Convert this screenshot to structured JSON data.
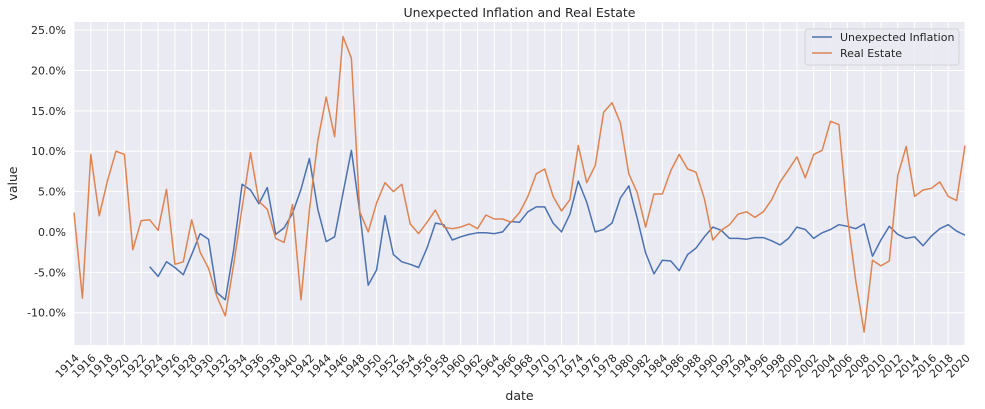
{
  "chart_data": {
    "type": "line",
    "title": "Unexpected Inflation and Real Estate",
    "xlabel": "date",
    "ylabel": "value",
    "xlim": [
      1914,
      2020
    ],
    "ylim": [
      -0.14,
      0.26
    ],
    "yticks": [
      -0.1,
      -0.05,
      0.0,
      0.05,
      0.1,
      0.15,
      0.2,
      0.25
    ],
    "ytick_labels": [
      "-10.0%",
      "-5.0%",
      "0.0%",
      "5.0%",
      "10.0%",
      "15.0%",
      "20.0%",
      "25.0%"
    ],
    "xticks": [
      1914,
      1916,
      1918,
      1920,
      1922,
      1924,
      1926,
      1928,
      1930,
      1932,
      1934,
      1936,
      1938,
      1940,
      1942,
      1944,
      1946,
      1948,
      1950,
      1952,
      1954,
      1956,
      1958,
      1960,
      1962,
      1964,
      1966,
      1968,
      1970,
      1972,
      1974,
      1976,
      1978,
      1980,
      1982,
      1984,
      1986,
      1988,
      1990,
      1992,
      1994,
      1996,
      1998,
      2000,
      2002,
      2004,
      2006,
      2008,
      2010,
      2012,
      2014,
      2016,
      2018,
      2020
    ],
    "xtick_labels": [
      "1914",
      "1916",
      "1918",
      "1920",
      "1922",
      "1924",
      "1926",
      "1928",
      "1930",
      "1932",
      "1934",
      "1936",
      "1938",
      "1940",
      "1942",
      "1944",
      "1946",
      "1948",
      "1950",
      "1952",
      "1954",
      "1956",
      "1958",
      "1960",
      "1962",
      "1964",
      "1966",
      "1968",
      "1970",
      "1972",
      "1974",
      "1976",
      "1978",
      "1980",
      "1982",
      "1984",
      "1986",
      "1988",
      "1990",
      "1992",
      "1994",
      "1996",
      "1998",
      "2000",
      "2002",
      "2004",
      "2006",
      "2008",
      "2010",
      "2012",
      "2014",
      "2016",
      "2018",
      "2020"
    ],
    "grid": true,
    "legend_position": "top-right",
    "series": [
      {
        "name": "Unexpected Inflation",
        "color": "#4c72b0",
        "x": [
          1923,
          1924,
          1925,
          1926,
          1927,
          1928,
          1929,
          1930,
          1931,
          1932,
          1933,
          1934,
          1935,
          1936,
          1937,
          1938,
          1939,
          1940,
          1941,
          1942,
          1943,
          1944,
          1945,
          1946,
          1947,
          1948,
          1949,
          1950,
          1951,
          1952,
          1953,
          1954,
          1955,
          1956,
          1957,
          1958,
          1959,
          1960,
          1961,
          1962,
          1963,
          1964,
          1965,
          1966,
          1967,
          1968,
          1969,
          1970,
          1971,
          1972,
          1973,
          1974,
          1975,
          1976,
          1977,
          1978,
          1979,
          1980,
          1981,
          1982,
          1983,
          1984,
          1985,
          1986,
          1987,
          1988,
          1989,
          1990,
          1991,
          1992,
          1993,
          1994,
          1995,
          1996,
          1997,
          1998,
          1999,
          2000,
          2001,
          2002,
          2003,
          2004,
          2005,
          2006,
          2007,
          2008,
          2009,
          2010,
          2011,
          2012,
          2013,
          2014,
          2015,
          2016,
          2017,
          2018,
          2019,
          2020
        ],
        "values": [
          -0.043,
          -0.055,
          -0.037,
          -0.044,
          -0.053,
          -0.028,
          -0.002,
          -0.009,
          -0.075,
          -0.084,
          -0.022,
          0.059,
          0.052,
          0.035,
          0.055,
          -0.003,
          0.005,
          0.023,
          0.053,
          0.091,
          0.028,
          -0.012,
          -0.006,
          0.048,
          0.101,
          0.024,
          -0.066,
          -0.047,
          0.02,
          -0.028,
          -0.037,
          -0.04,
          -0.044,
          -0.02,
          0.011,
          0.009,
          -0.01,
          -0.006,
          -0.003,
          -0.001,
          -0.001,
          -0.002,
          0.0,
          0.013,
          0.012,
          0.025,
          0.031,
          0.031,
          0.011,
          0.0,
          0.022,
          0.063,
          0.037,
          0.0,
          0.003,
          0.011,
          0.042,
          0.057,
          0.017,
          -0.026,
          -0.052,
          -0.035,
          -0.036,
          -0.048,
          -0.028,
          -0.02,
          -0.006,
          0.006,
          0.002,
          -0.008,
          -0.008,
          -0.009,
          -0.007,
          -0.007,
          -0.011,
          -0.016,
          -0.008,
          0.006,
          0.003,
          -0.008,
          -0.001,
          0.003,
          0.009,
          0.007,
          0.004,
          0.01,
          -0.03,
          -0.01,
          0.007,
          -0.003,
          -0.008,
          -0.006,
          -0.017,
          -0.005,
          0.004,
          0.009,
          0.001,
          -0.004
        ]
      },
      {
        "name": "Real Estate",
        "color": "#dd8452",
        "x": [
          1914,
          1915,
          1916,
          1917,
          1918,
          1919,
          1920,
          1921,
          1922,
          1923,
          1924,
          1925,
          1926,
          1927,
          1928,
          1929,
          1930,
          1931,
          1932,
          1933,
          1934,
          1935,
          1936,
          1937,
          1938,
          1939,
          1940,
          1941,
          1942,
          1943,
          1944,
          1945,
          1946,
          1947,
          1948,
          1949,
          1950,
          1951,
          1952,
          1953,
          1954,
          1955,
          1956,
          1957,
          1958,
          1959,
          1960,
          1961,
          1962,
          1963,
          1964,
          1965,
          1966,
          1967,
          1968,
          1969,
          1970,
          1971,
          1972,
          1973,
          1974,
          1975,
          1976,
          1977,
          1978,
          1979,
          1980,
          1981,
          1982,
          1983,
          1984,
          1985,
          1986,
          1987,
          1988,
          1989,
          1990,
          1991,
          1992,
          1993,
          1994,
          1995,
          1996,
          1997,
          1998,
          1999,
          2000,
          2001,
          2002,
          2003,
          2004,
          2005,
          2006,
          2007,
          2008,
          2009,
          2010,
          2011,
          2012,
          2013,
          2014,
          2015,
          2016,
          2017,
          2018,
          2019,
          2020
        ],
        "values": [
          0.024,
          -0.082,
          0.096,
          0.02,
          0.064,
          0.1,
          0.096,
          -0.022,
          0.014,
          0.015,
          0.002,
          0.053,
          -0.04,
          -0.037,
          0.015,
          -0.025,
          -0.045,
          -0.08,
          -0.104,
          -0.04,
          0.03,
          0.098,
          0.038,
          0.028,
          -0.008,
          -0.013,
          0.034,
          -0.084,
          0.027,
          0.113,
          0.167,
          0.118,
          0.242,
          0.215,
          0.025,
          0.0,
          0.036,
          0.061,
          0.05,
          0.059,
          0.01,
          -0.002,
          0.012,
          0.027,
          0.006,
          0.004,
          0.006,
          0.01,
          0.004,
          0.021,
          0.016,
          0.016,
          0.012,
          0.024,
          0.044,
          0.072,
          0.078,
          0.044,
          0.026,
          0.04,
          0.107,
          0.061,
          0.082,
          0.148,
          0.16,
          0.135,
          0.072,
          0.049,
          0.006,
          0.047,
          0.047,
          0.076,
          0.096,
          0.078,
          0.074,
          0.041,
          -0.01,
          0.002,
          0.009,
          0.022,
          0.025,
          0.018,
          0.025,
          0.04,
          0.062,
          0.077,
          0.093,
          0.067,
          0.096,
          0.101,
          0.137,
          0.133,
          0.02,
          -0.06,
          -0.124,
          -0.035,
          -0.042,
          -0.036,
          0.07,
          0.106,
          0.044,
          0.052,
          0.054,
          0.062,
          0.044,
          0.039,
          0.107
        ]
      }
    ]
  }
}
